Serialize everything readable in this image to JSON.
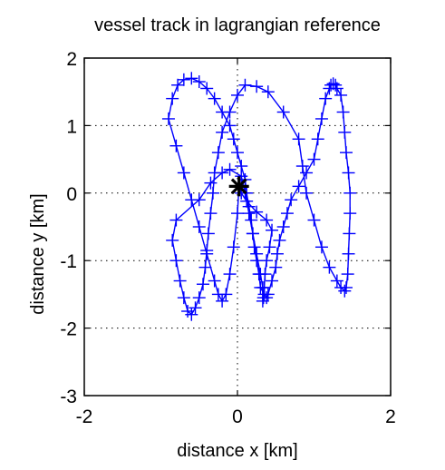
{
  "chart_data": {
    "type": "line",
    "title": "vessel track in lagrangian reference",
    "xlabel": "distance x [km]",
    "ylabel": "distance y [km]",
    "xlim": [
      -2,
      2
    ],
    "ylim": [
      -3,
      2
    ],
    "xticks": [
      -2,
      0,
      2
    ],
    "yticks": [
      -3,
      -2,
      -1,
      0,
      1,
      2
    ],
    "xtick_labels": [
      "-2",
      "0",
      "2"
    ],
    "ytick_labels": [
      "-3",
      "-2",
      "-1",
      "0",
      "1",
      "2"
    ],
    "grid": true,
    "series": [
      {
        "color": "#0000ff",
        "marker": "plus",
        "x": [
          0.02,
          0.05,
          0.12,
          0.25,
          0.38,
          0.45,
          0.42,
          0.38,
          0.36,
          0.35,
          0.34,
          0.33,
          0.33,
          0.3,
          0.25,
          0.2,
          0.15,
          0.1,
          0.05,
          -0.1,
          -0.2,
          -0.35,
          -0.5,
          -0.8,
          -0.85,
          -0.8,
          -0.75,
          -0.7,
          -0.65,
          -0.6,
          -0.55,
          -0.5,
          -0.45,
          -0.42,
          -0.4,
          -0.38,
          -0.35,
          -0.32,
          -0.3,
          -0.25,
          -0.2,
          -0.1,
          0.0,
          0.1,
          0.25,
          0.4,
          0.6,
          0.8,
          0.85,
          0.9,
          1.0,
          1.1,
          1.2,
          1.3,
          1.35,
          1.4,
          1.42,
          1.44,
          1.45,
          1.46,
          1.47,
          1.47,
          1.45,
          1.42,
          1.4,
          1.38,
          1.35,
          1.3,
          1.28,
          1.25,
          1.22,
          1.2,
          1.15,
          1.1,
          1.05,
          1.0,
          0.9,
          0.8,
          0.7,
          0.65,
          0.6,
          0.55,
          0.52,
          0.5,
          0.45,
          0.4,
          0.38,
          0.35,
          0.3,
          0.28,
          0.25,
          0.22,
          0.2,
          0.18,
          0.15,
          0.12,
          0.1,
          0.05,
          0.0,
          -0.05,
          -0.1,
          -0.2,
          -0.3,
          -0.4,
          -0.5,
          -0.6,
          -0.7,
          -0.78,
          -0.85,
          -0.9,
          -0.8,
          -0.7,
          -0.6,
          -0.5,
          -0.4,
          -0.3,
          -0.25,
          -0.2,
          -0.15,
          -0.1,
          -0.05,
          0.0,
          0.02
        ],
        "y": [
          0.1,
          0.0,
          -0.12,
          -0.28,
          -0.4,
          -0.55,
          -0.8,
          -1.0,
          -1.2,
          -1.4,
          -1.55,
          -1.6,
          -1.4,
          -1.2,
          -0.9,
          -0.6,
          -0.3,
          0.0,
          0.25,
          0.35,
          0.3,
          0.15,
          -0.1,
          -0.4,
          -0.7,
          -1.0,
          -1.3,
          -1.55,
          -1.75,
          -1.8,
          -1.7,
          -1.55,
          -1.35,
          -1.1,
          -0.85,
          -0.6,
          -0.3,
          0.0,
          0.3,
          0.6,
          0.9,
          1.2,
          1.45,
          1.6,
          1.58,
          1.5,
          1.2,
          0.8,
          0.4,
          0.0,
          -0.4,
          -0.8,
          -1.1,
          -1.3,
          -1.4,
          -1.45,
          -1.4,
          -1.2,
          -0.9,
          -0.6,
          -0.3,
          0.0,
          0.3,
          0.6,
          0.9,
          1.2,
          1.45,
          1.55,
          1.6,
          1.62,
          1.6,
          1.55,
          1.4,
          1.1,
          0.8,
          0.5,
          0.3,
          0.1,
          -0.1,
          -0.3,
          -0.5,
          -0.7,
          -0.9,
          -1.1,
          -1.3,
          -1.5,
          -1.55,
          -1.5,
          -1.4,
          -1.2,
          -1.0,
          -0.8,
          -0.6,
          -0.4,
          -0.2,
          0.0,
          0.2,
          0.4,
          0.6,
          0.8,
          1.0,
          1.2,
          1.4,
          1.55,
          1.65,
          1.7,
          1.68,
          1.6,
          1.4,
          1.1,
          0.7,
          0.3,
          -0.1,
          -0.5,
          -0.9,
          -1.3,
          -1.5,
          -1.6,
          -1.5,
          -1.2,
          -0.8,
          -0.3,
          0.1
        ]
      }
    ],
    "annotations": [
      {
        "marker": "asterisk",
        "x": 0.02,
        "y": 0.1,
        "color": "#000000"
      }
    ]
  }
}
